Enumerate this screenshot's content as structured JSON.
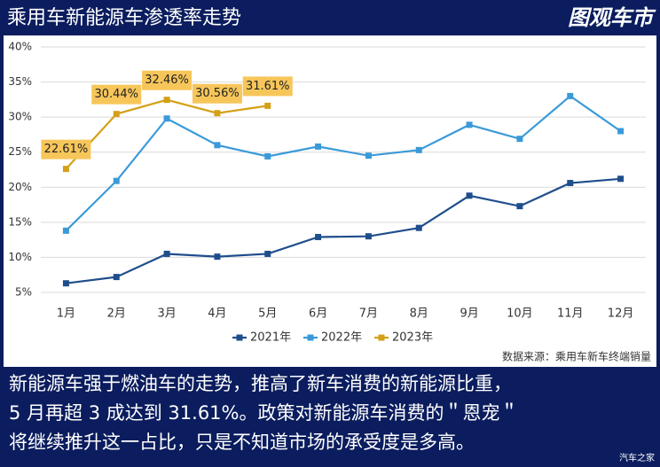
{
  "header": {
    "logo": "图观车市"
  },
  "chart_data": {
    "type": "line",
    "title": "乘用车新能源车渗透率走势",
    "categories": [
      "1月",
      "2月",
      "3月",
      "4月",
      "5月",
      "6月",
      "7月",
      "8月",
      "9月",
      "10月",
      "11月",
      "12月"
    ],
    "series": [
      {
        "name": "2021年",
        "color": "#1f4e8c",
        "values": [
          6.3,
          7.2,
          10.5,
          10.1,
          10.5,
          12.9,
          13.0,
          14.2,
          18.8,
          17.3,
          20.6,
          21.2
        ]
      },
      {
        "name": "2022年",
        "color": "#3a9ad9",
        "values": [
          13.8,
          20.9,
          29.8,
          26.0,
          24.4,
          25.8,
          24.5,
          25.3,
          28.9,
          26.9,
          33.0,
          28.0
        ]
      },
      {
        "name": "2023年",
        "color": "#d4a017",
        "values": [
          22.61,
          30.44,
          32.46,
          30.56,
          31.61,
          null,
          null,
          null,
          null,
          null,
          null,
          null
        ],
        "value_labels": [
          "22.61%",
          "30.44%",
          "32.46%",
          "30.56%",
          "31.61%",
          null,
          null,
          null,
          null,
          null,
          null,
          null
        ]
      }
    ],
    "ylim": [
      5,
      40
    ],
    "yticks": [
      {
        "value": 5,
        "label": "5%"
      },
      {
        "value": 10,
        "label": "10%"
      },
      {
        "value": 15,
        "label": "15%"
      },
      {
        "value": 20,
        "label": "20%"
      },
      {
        "value": 25,
        "label": "25%"
      },
      {
        "value": 30,
        "label": "30%"
      },
      {
        "value": 35,
        "label": "35%"
      },
      {
        "value": 40,
        "label": "40%"
      }
    ],
    "grid": true,
    "legend": "bottom",
    "source": "数据来源：乘用车新车终端销量"
  },
  "caption": [
    "新能源车强于燃油车的走势，推高了新车消费的新能源比重，",
    "5 月再超 3 成达到 31.61%。政策对新能源车消费的＂恩宠＂",
    "将继续推升这一占比，只是不知道市场的承受度是多高。"
  ],
  "watermark": "汽车之家"
}
